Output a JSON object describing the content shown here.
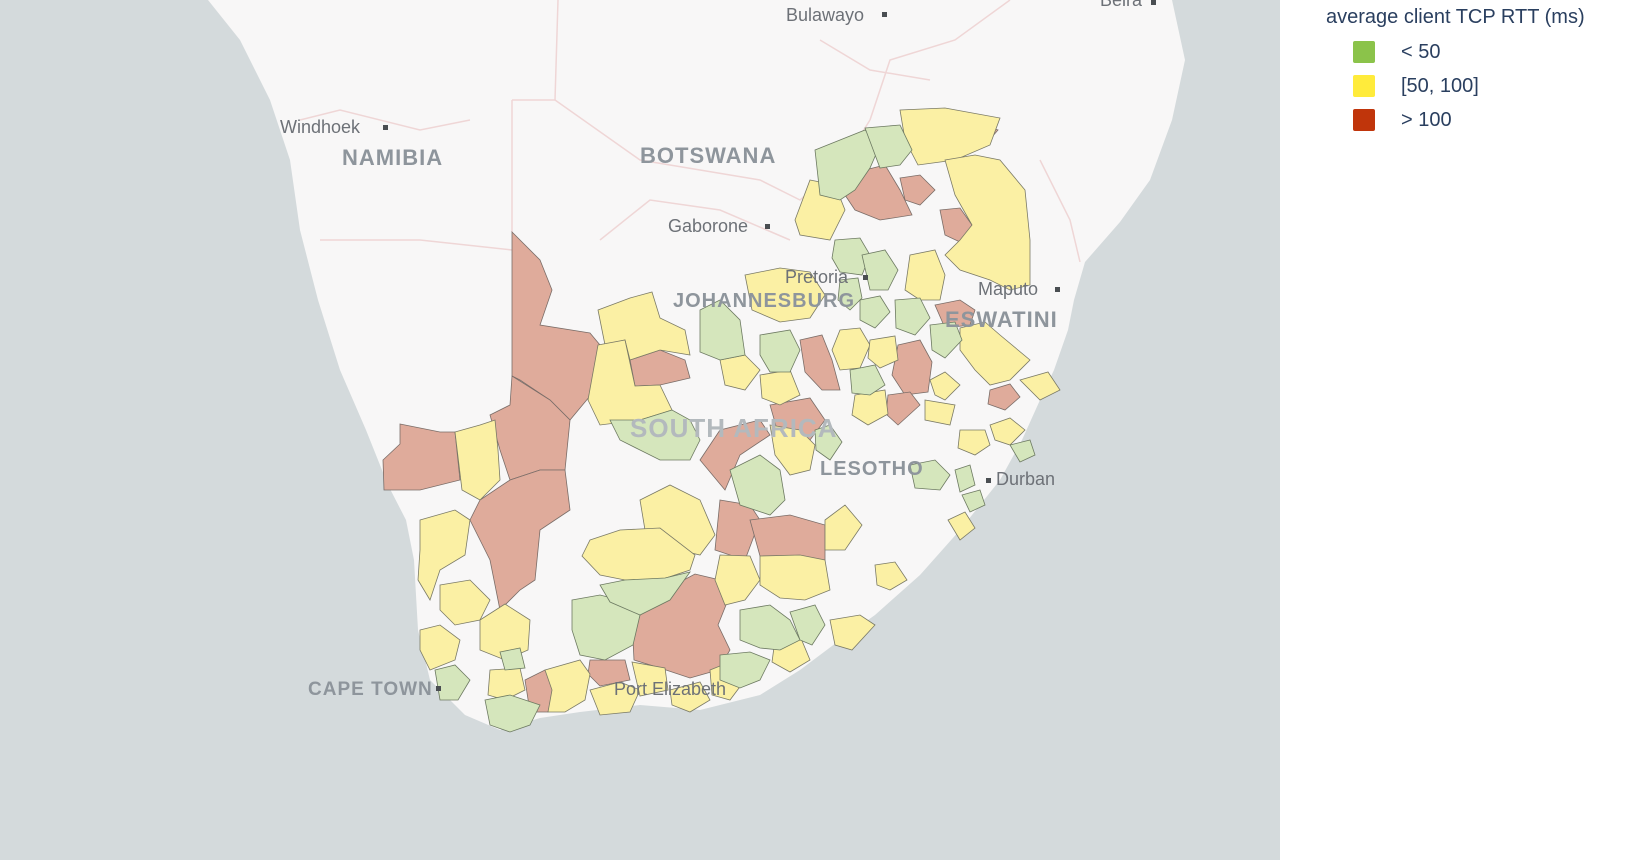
{
  "legend": {
    "title": "average client TCP RTT (ms)",
    "items": [
      {
        "label": "< 50",
        "color": "#8bc34a"
      },
      {
        "label": "[50, 100]",
        "color": "#ffeb3b"
      },
      {
        "label": "> 100",
        "color": "#c0350b"
      }
    ]
  },
  "map": {
    "labels": {
      "bulawayo": "Bulawayo",
      "beira": "Beira",
      "windhoek": "Windhoek",
      "namibia": "NAMIBIA",
      "botswana": "BOTSWANA",
      "gaborone": "Gaborone",
      "pretoria": "Pretoria",
      "johannesburg": "JOHANNESBURG",
      "maputo": "Maputo",
      "eswatini": "ESWATINI",
      "south_africa": "SOUTH AFRICA",
      "lesotho": "LESOTHO",
      "durban": "Durban",
      "cape_town": "CAPE TOWN",
      "port_elizabeth": "Port Elizabeth"
    },
    "colors": {
      "ocean": "#d4dadc",
      "land": "#f8f7f7",
      "border": "#efd6d6",
      "green_fill": "#d5e6bc",
      "yellow_fill": "#fbf0a4",
      "red_fill": "#dfab9b"
    }
  }
}
